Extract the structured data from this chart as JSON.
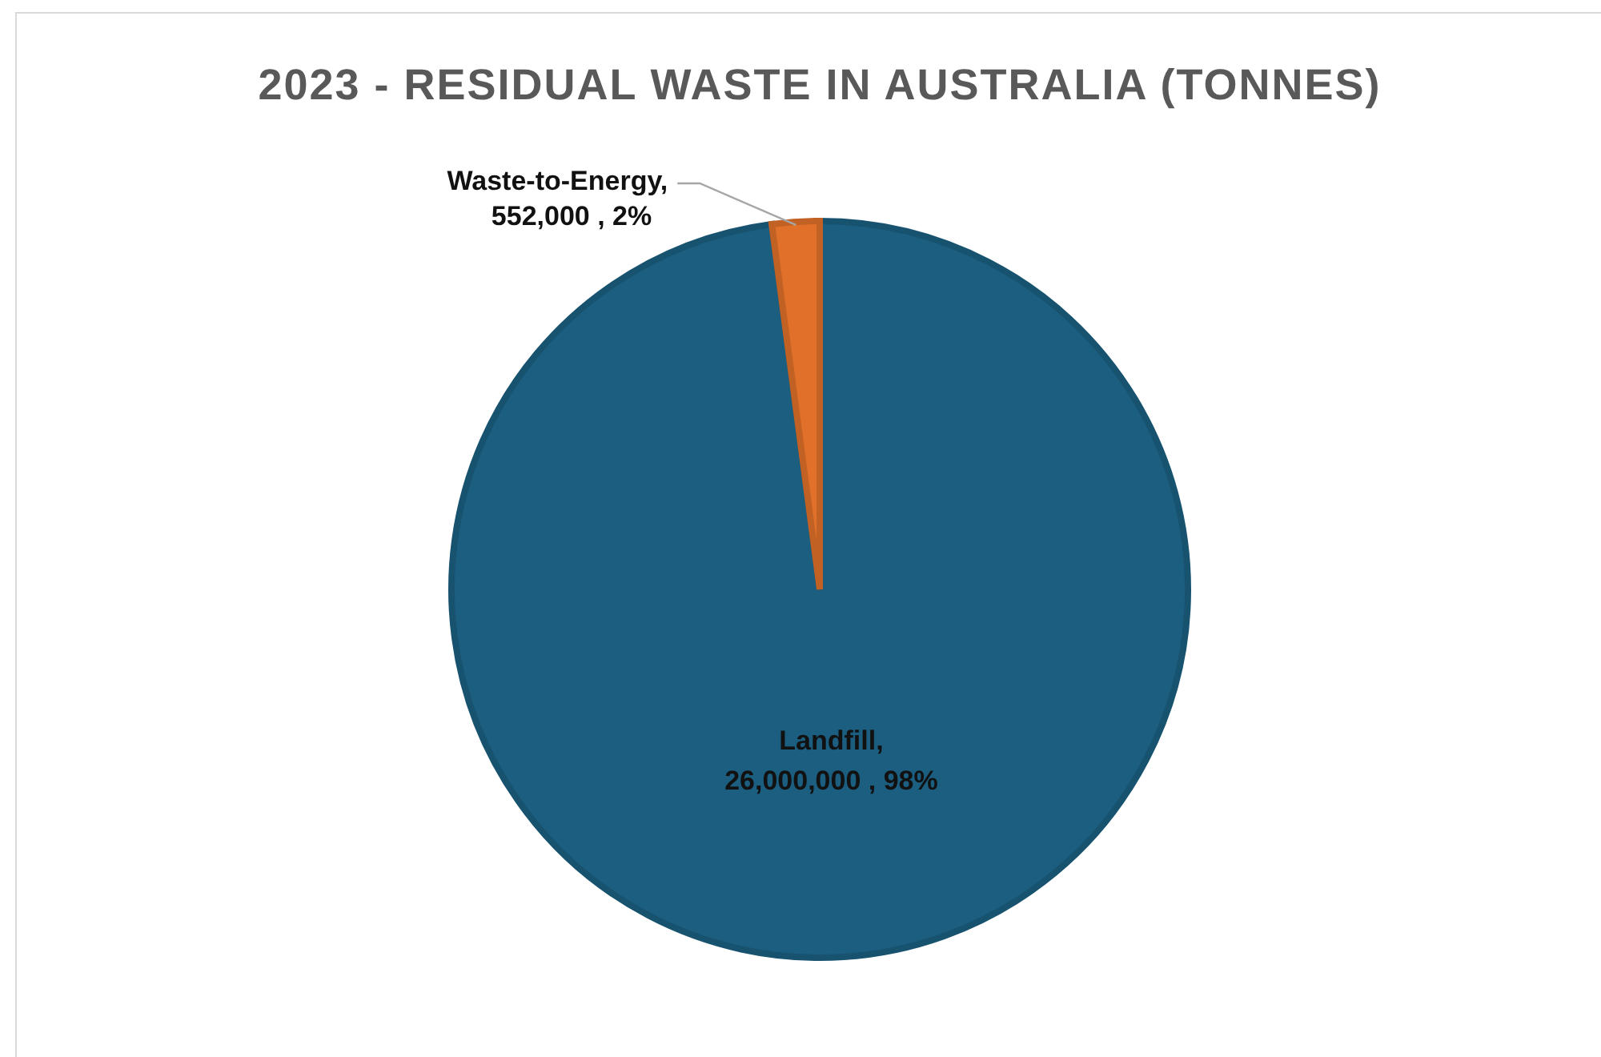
{
  "chart_data": {
    "type": "pie",
    "title": "2023 - RESIDUAL WASTE IN AUSTRALIA (TONNES)",
    "categories": [
      "Landfill",
      "Waste-to-Energy"
    ],
    "values": [
      26000000,
      552000
    ],
    "colors": [
      "#1b5e80",
      "#e0702a"
    ],
    "value_labels": [
      ",\n26,000,000 , 98%",
      ",\n552,000 , 2%"
    ]
  }
}
